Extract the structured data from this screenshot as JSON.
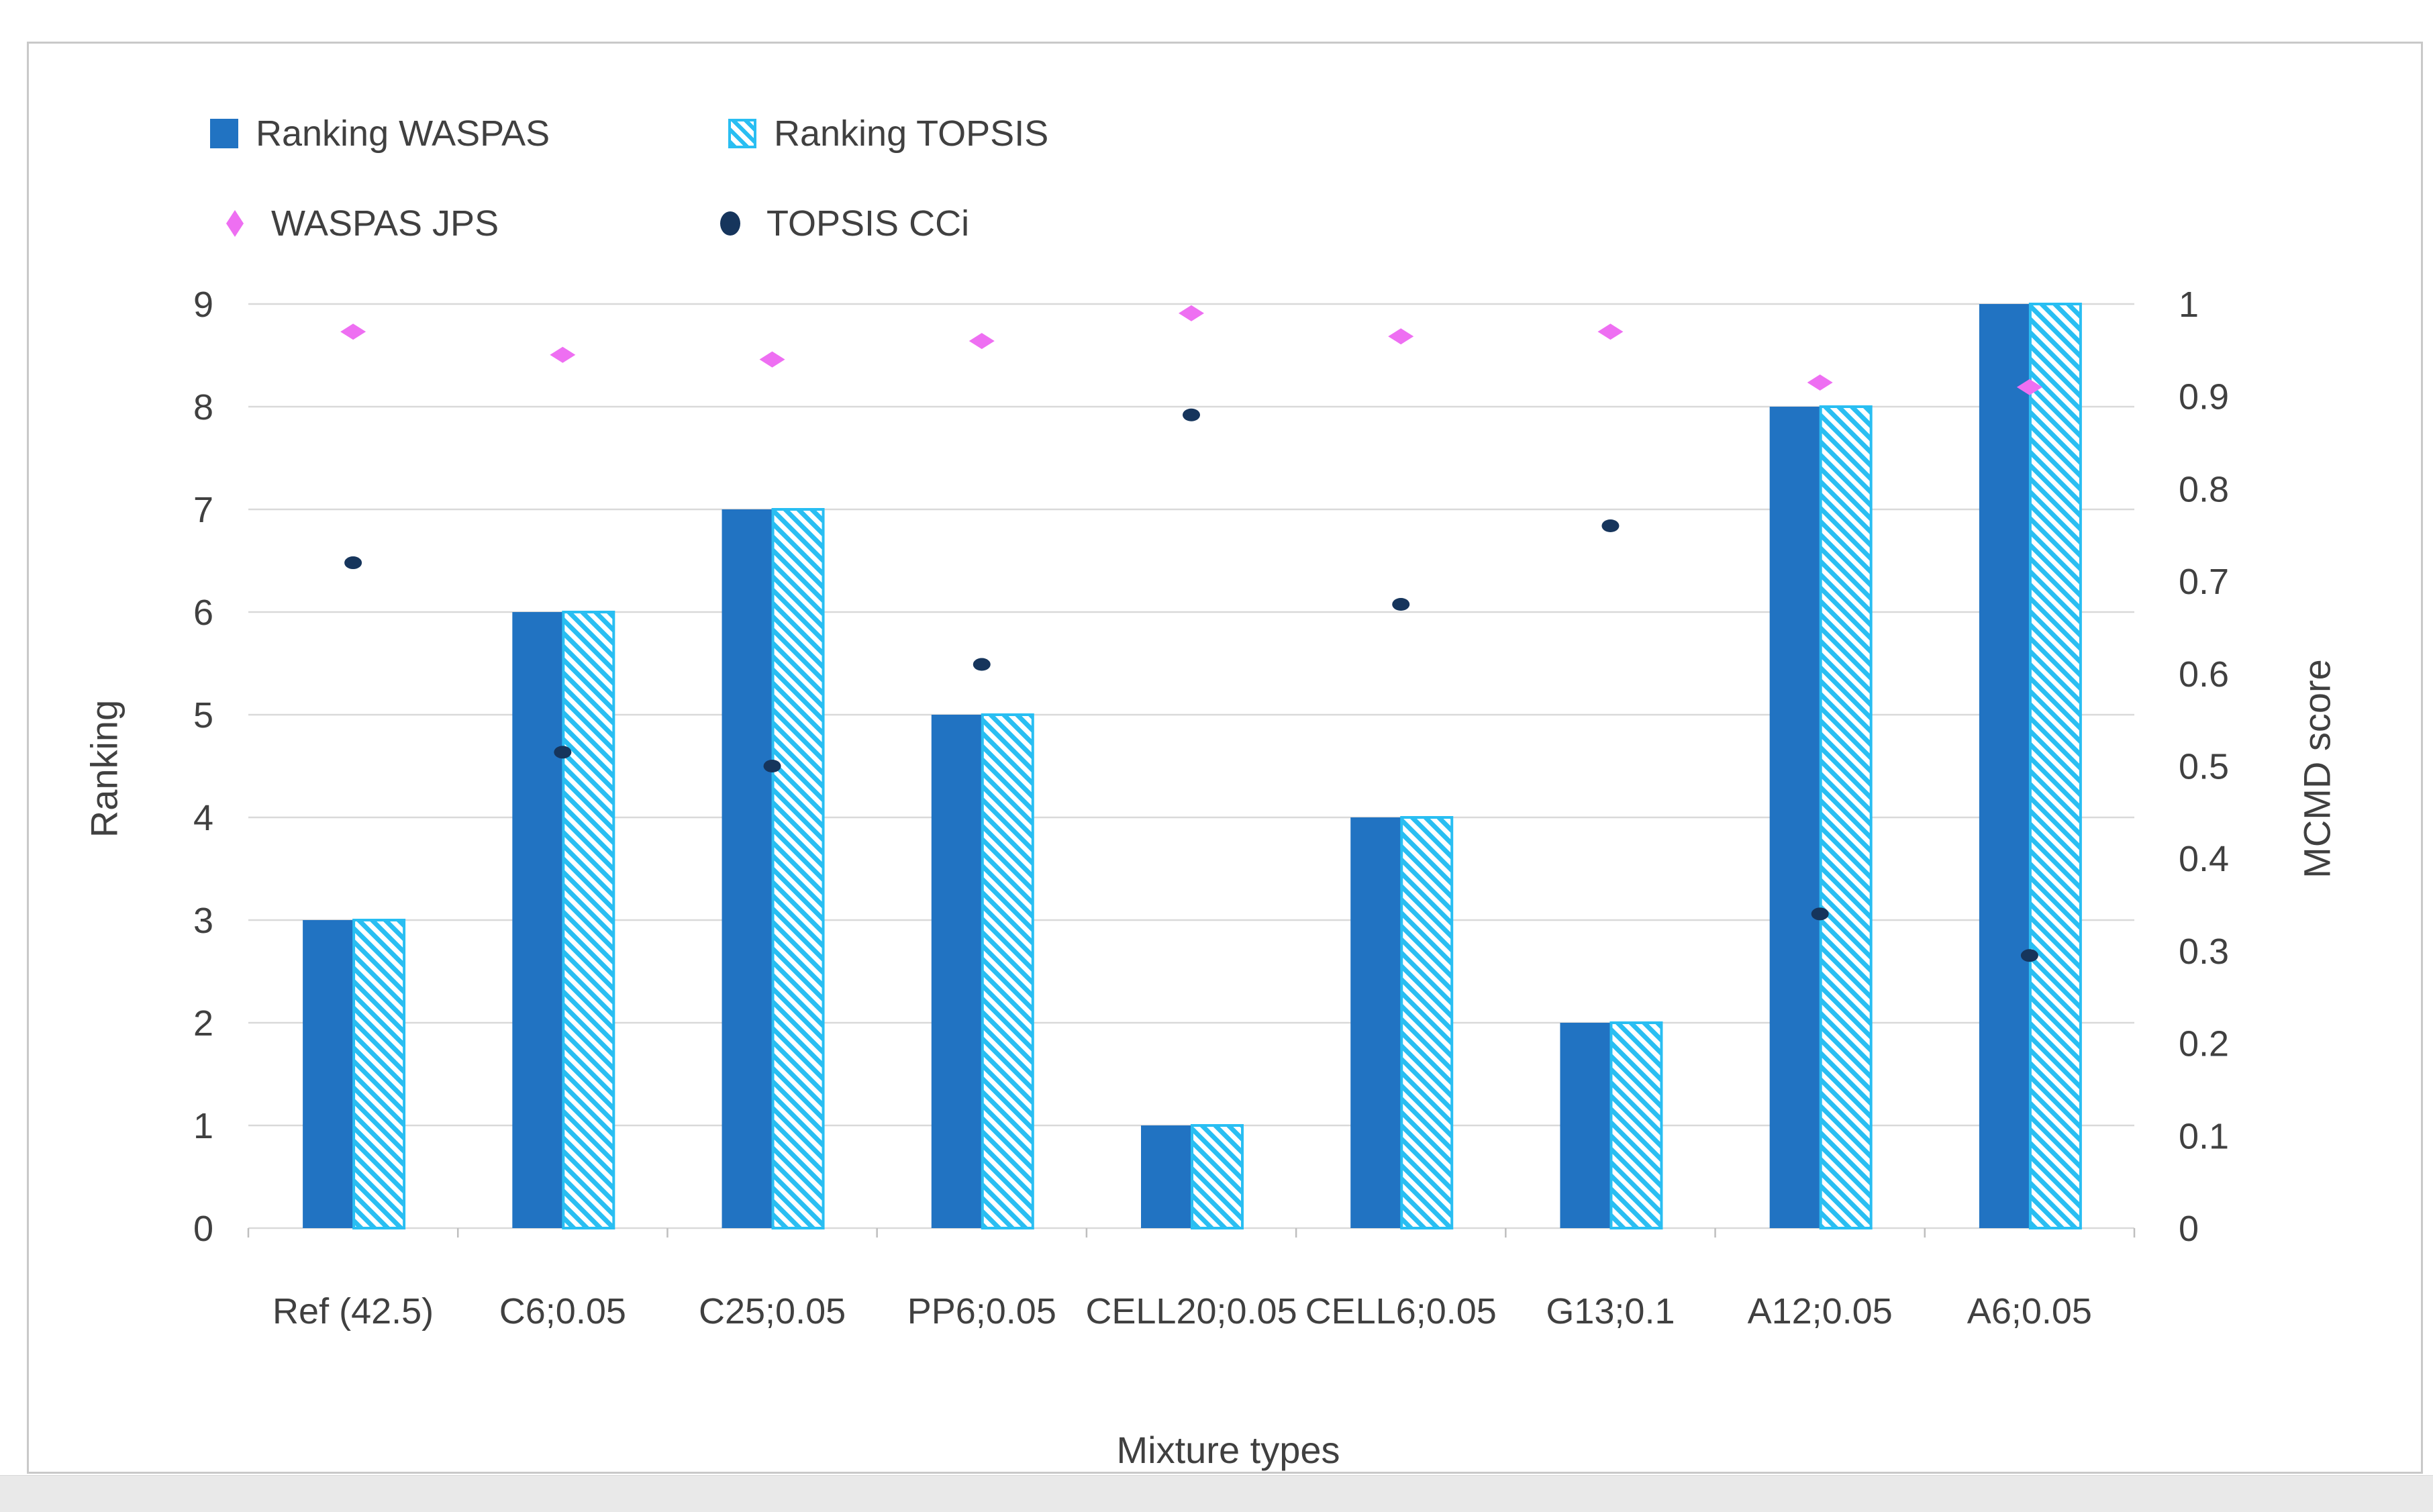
{
  "colors": {
    "bar_waspas": "#2173C2",
    "bar_topsis": "#29BEF2",
    "point_jps": "#EE6FF2",
    "point_cci": "#16355C",
    "gridline": "#D9D9D9",
    "tick_stub": "#BFBFBF",
    "text": "#404040",
    "chart_border": "#C9C9C9",
    "bottom_strip": "#E9E9E9",
    "background": "#FFFFFF"
  },
  "axes": {
    "left": {
      "tick_labels": [
        "9",
        "8",
        "7",
        "6",
        "5",
        "4",
        "3",
        "2",
        "1",
        "0"
      ]
    },
    "right": {
      "tick_labels": [
        "1",
        "0.9",
        "0.8",
        "0.7",
        "0.6",
        "0.5",
        "0.4",
        "0.3",
        "0.2",
        "0.1",
        "0"
      ]
    }
  },
  "chart_data": {
    "type": "combo",
    "categories": [
      "Ref (42.5)",
      "C6;0.05",
      "C25;0.05",
      "PP6;0.05",
      "CELL20;0.05",
      "CELL6;0.05",
      "G13;0.1",
      "A12;0.05",
      "A6;0.05"
    ],
    "series": [
      {
        "name": "Ranking WASPAS",
        "type": "bar",
        "axis": "left",
        "marker": "solid-square",
        "color": "#2173C2",
        "values": [
          3,
          6,
          7,
          5,
          1,
          4,
          2,
          8,
          9
        ]
      },
      {
        "name": "Ranking TOPSIS",
        "type": "bar",
        "axis": "left",
        "marker": "hatched-square",
        "color": "#29BEF2",
        "values": [
          3,
          6,
          7,
          5,
          1,
          4,
          2,
          8,
          9
        ]
      },
      {
        "name": "WASPAS JPS",
        "type": "scatter",
        "axis": "right",
        "marker": "diamond",
        "color": "#EE6FF2",
        "values": [
          0.97,
          0.945,
          0.94,
          0.96,
          0.99,
          0.965,
          0.97,
          0.915,
          0.91
        ]
      },
      {
        "name": "TOPSIS CCi",
        "type": "scatter",
        "axis": "right",
        "marker": "circle",
        "color": "#16355C",
        "values": [
          0.72,
          0.515,
          0.5,
          0.61,
          0.88,
          0.675,
          0.76,
          0.34,
          0.295
        ]
      }
    ],
    "title": "",
    "xlabel": "Mixture types",
    "ylabel_left": "Ranking",
    "ylabel_right": "MCMD score",
    "ylim_left": [
      0,
      9
    ],
    "ylim_right": [
      0,
      1
    ],
    "grid": true,
    "legend_position": "top-left"
  }
}
